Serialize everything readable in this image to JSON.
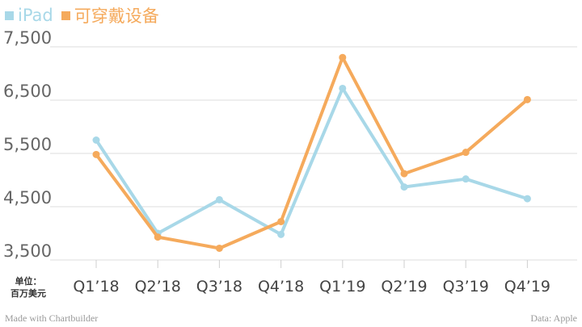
{
  "chart_data": {
    "type": "line",
    "categories": [
      "Q1’18",
      "Q2’18",
      "Q3’18",
      "Q4’18",
      "Q1’19",
      "Q2’19",
      "Q3’19",
      "Q4’19"
    ],
    "series": [
      {
        "name": "iPad",
        "color": "#a8d8e8",
        "values": [
          5750,
          4000,
          4630,
          3980,
          6720,
          4870,
          5020,
          4650
        ]
      },
      {
        "name": "可穿戴设备",
        "color": "#f5aa5c",
        "values": [
          5480,
          3930,
          3720,
          4220,
          7300,
          5120,
          5520,
          6510
        ]
      }
    ],
    "yticks": [
      3500,
      4500,
      5500,
      6500,
      7500
    ],
    "ytick_labels": [
      "3,500",
      "4,500",
      "5,500",
      "6,500",
      "7,500"
    ],
    "ylim": [
      3500,
      7500
    ],
    "grid": true,
    "legend_position": "top-left",
    "unit_label": [
      "单位：",
      "百万美元"
    ],
    "footer_left": "Made with Chartbuilder",
    "footer_right": "Data: Apple"
  }
}
